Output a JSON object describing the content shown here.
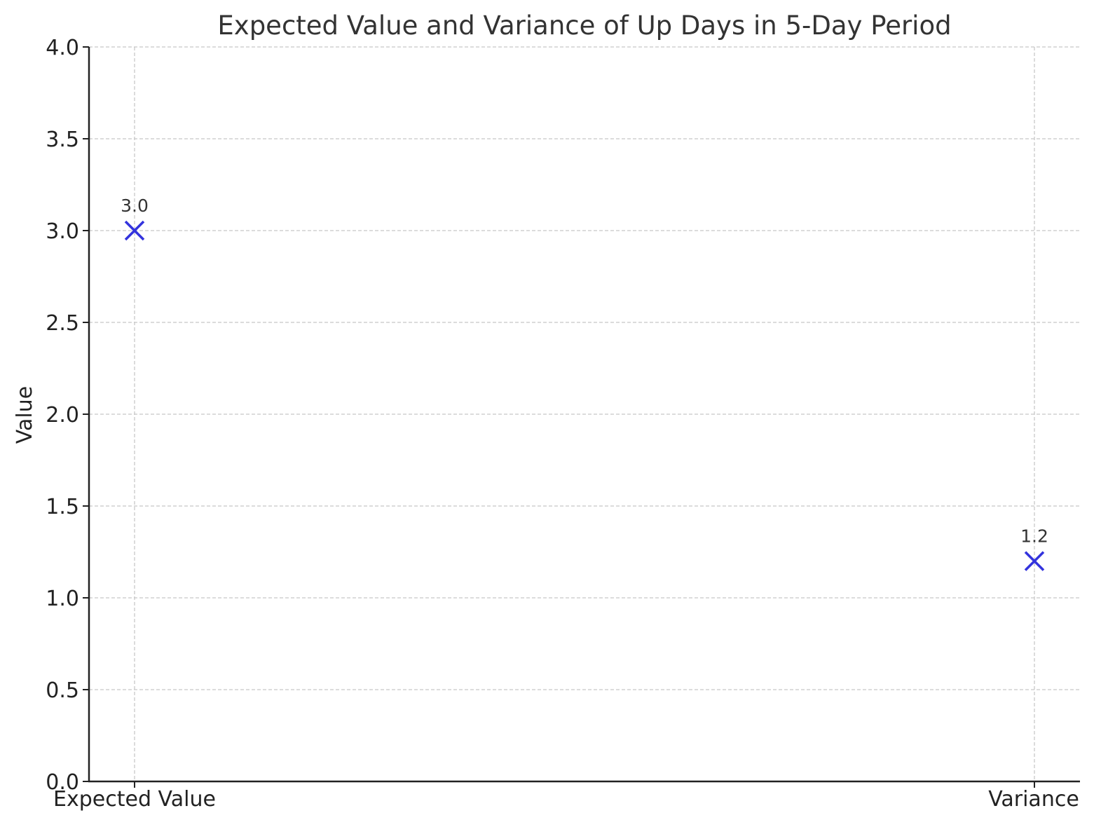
{
  "chart_data": {
    "type": "scatter",
    "title": "Expected Value and Variance of Up Days in 5-Day Period",
    "xlabel": "",
    "ylabel": "Value",
    "categories": [
      "Expected Value",
      "Variance"
    ],
    "values": [
      3.0,
      1.2
    ],
    "data_labels": [
      "3.0",
      "1.2"
    ],
    "ylim": [
      0,
      4
    ],
    "yticks": [
      "0.0",
      "0.5",
      "1.0",
      "1.5",
      "2.0",
      "2.5",
      "3.0",
      "3.5",
      "4.0"
    ],
    "grid": true,
    "marker": "x",
    "marker_color": "#3333dd",
    "legend": null
  }
}
